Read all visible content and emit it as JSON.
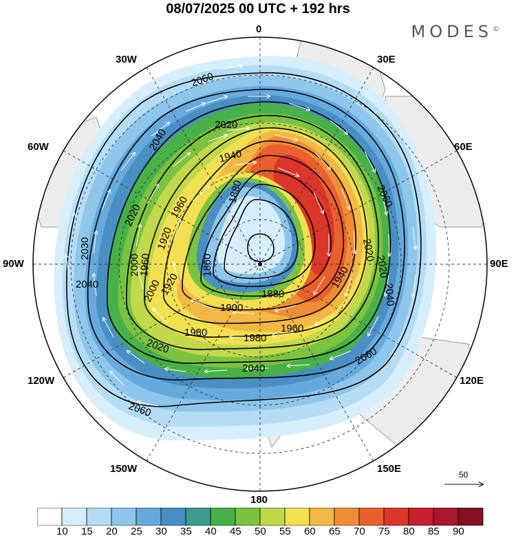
{
  "title": "08/07/2025  00 UTC  + 192 hrs",
  "brand": "MODES",
  "brand_mark": "©",
  "longitude_labels": {
    "lon_0": "0",
    "lon_30e": "30E",
    "lon_60e": "60E",
    "lon_90e": "90E",
    "lon_120e": "120E",
    "lon_150e": "150E",
    "lon_180": "180",
    "lon_150w": "150W",
    "lon_120w": "120W",
    "lon_90w": "90W",
    "lon_60w": "60W",
    "lon_30w": "30W"
  },
  "contour_labels": [
    "2060",
    "2020",
    "2040",
    "1940",
    "1960",
    "2020",
    "1880",
    "2060",
    "2020",
    "1920",
    "1960",
    "2000",
    "2030",
    "2040",
    "1860",
    "1900",
    "1880",
    "2020",
    "2040",
    "1940",
    "1920",
    "1960",
    "1980",
    "2000",
    "1980",
    "2020",
    "2040",
    "2060",
    "2060"
  ],
  "reference_vector": {
    "value": "50"
  },
  "colorbar": {
    "labels": [
      "10",
      "15",
      "20",
      "25",
      "30",
      "35",
      "40",
      "45",
      "50",
      "55",
      "60",
      "65",
      "70",
      "75",
      "80",
      "85",
      "90"
    ],
    "colors": [
      "#ffffff",
      "#d6eefb",
      "#b4dcf4",
      "#8dc6ea",
      "#67a9dc",
      "#4a8fc4",
      "#3a9c8f",
      "#48b048",
      "#7cc241",
      "#c0d84a",
      "#f2e050",
      "#f3b843",
      "#ef8d36",
      "#e9602d",
      "#dc3529",
      "#c71f2b",
      "#a8172a",
      "#851020"
    ]
  }
}
